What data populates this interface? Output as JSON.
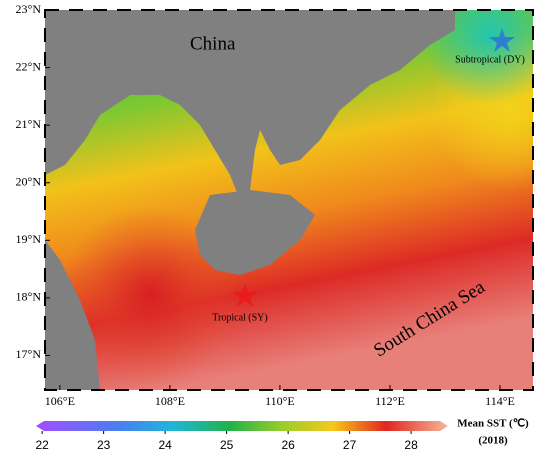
{
  "map": {
    "xlim": [
      105.73,
      114.6
    ],
    "ylim": [
      16.4,
      23
    ],
    "xticks": [
      {
        "value": 106,
        "label": "106°E"
      },
      {
        "value": 108,
        "label": "108°E"
      },
      {
        "value": 110,
        "label": "110°E"
      },
      {
        "value": 112,
        "label": "112°E"
      },
      {
        "value": 114,
        "label": "114°E"
      }
    ],
    "yticks": [
      {
        "value": 17,
        "label": "17°N"
      },
      {
        "value": 18,
        "label": "18°N"
      },
      {
        "value": 19,
        "label": "19°N"
      },
      {
        "value": 20,
        "label": "20°N"
      },
      {
        "value": 21,
        "label": "21°N"
      },
      {
        "value": 22,
        "label": "22°N"
      },
      {
        "value": 23,
        "label": "23°N"
      }
    ],
    "labels": {
      "china": "China",
      "sea": "South China Sea",
      "subtropical": "Subtropical (DY)",
      "tropical": "Tropical (SY)"
    }
  },
  "colorbar": {
    "lim": [
      21.9,
      28.6
    ],
    "ticks": [
      22,
      23,
      24,
      25,
      26,
      27,
      28
    ],
    "title": "Mean SST (℃)",
    "year": "(2018)"
  }
}
